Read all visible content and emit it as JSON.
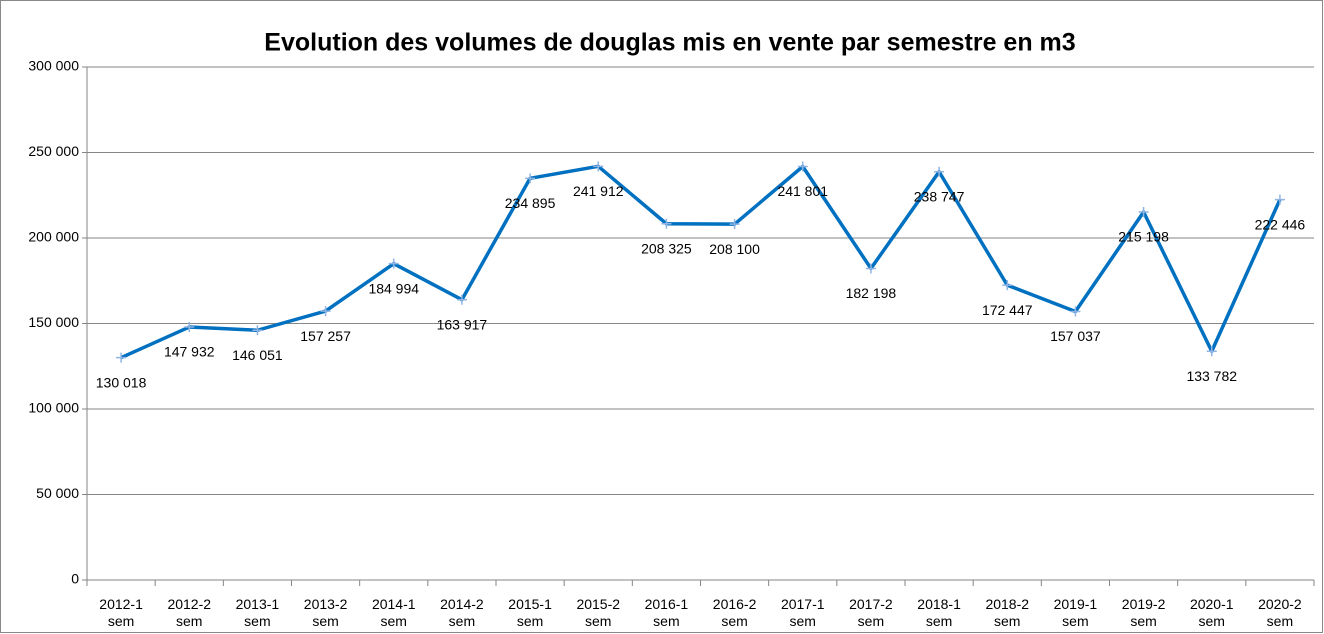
{
  "chart_data": {
    "type": "line",
    "title": "Evolution des volumes de douglas mis en vente par semestre en m3",
    "categories": [
      "2012-1 sem",
      "2012-2 sem",
      "2013-1 sem",
      "2013-2 sem",
      "2014-1 sem",
      "2014-2 sem",
      "2015-1 sem",
      "2015-2 sem",
      "2016-1 sem",
      "2016-2 sem",
      "2017-1 sem",
      "2017-2 sem",
      "2018-1 sem",
      "2018-2 sem",
      "2019-1 sem",
      "2019-2 sem",
      "2020-1 sem",
      "2020-2 sem"
    ],
    "values": [
      130018,
      147932,
      146051,
      157257,
      184994,
      163917,
      234895,
      241912,
      208325,
      208100,
      241801,
      182198,
      238747,
      172447,
      157037,
      215198,
      133782,
      222446
    ],
    "value_labels": [
      "130 018",
      "147 932",
      "146 051",
      "157 257",
      "184 994",
      "163 917",
      "234 895",
      "241 912",
      "208 325",
      "208 100",
      "241 801",
      "182 198",
      "238 747",
      "172 447",
      "157 037",
      "215 198",
      "133 782",
      "222 446"
    ],
    "color": "#0070c0",
    "marker_color": "#8fb4e3",
    "ylim": [
      0,
      300000
    ],
    "yticks": [
      0,
      {
        "value": 50000,
        "label": "50 000"
      },
      {
        "value": 100000,
        "label": "100 000"
      },
      {
        "value": 150000,
        "label": "150 000"
      },
      {
        "value": 200000,
        "label": "200 000"
      },
      {
        "value": 250000,
        "label": "250 000"
      },
      {
        "value": 300000,
        "label": "300 000"
      }
    ],
    "grid": true
  }
}
